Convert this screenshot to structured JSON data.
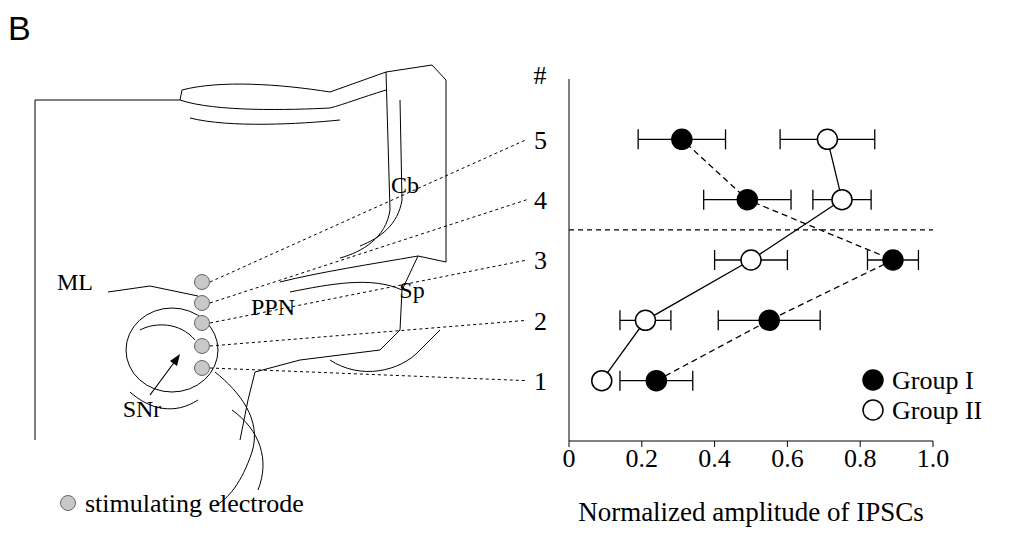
{
  "panel_label": "B",
  "diagram": {
    "region_labels": [
      "ML",
      "PPN",
      "Sp",
      "Cb",
      "SNr"
    ],
    "electrode_legend": "stimulating electrode"
  },
  "chart_data": {
    "type": "scatter",
    "x_label": "Normalized amplitude of IPSCs",
    "y_label": "#",
    "y": [
      1,
      2,
      3,
      4,
      5
    ],
    "xlim": [
      0,
      1
    ],
    "xticks": [
      0,
      0.2,
      0.4,
      0.6,
      0.8,
      {
        "value": 1,
        "label": "1.0"
      }
    ],
    "ylim": [
      0,
      6
    ],
    "yticks": [
      1,
      2,
      3,
      4,
      5
    ],
    "reference_line_y": 3.5,
    "legend": "lower right",
    "series": [
      {
        "name": "Group I",
        "color": "#000000",
        "marker": "filled_circle",
        "line_style": "dashed",
        "values": [
          0.24,
          0.55,
          0.89,
          0.49,
          0.31
        ],
        "errors": [
          0.1,
          0.14,
          0.07,
          0.12,
          0.12
        ]
      },
      {
        "name": "Group II",
        "color": "#000000",
        "marker": "open_circle",
        "line_style": "solid",
        "values": [
          0.09,
          0.21,
          0.5,
          0.75,
          0.71
        ],
        "errors": [
          0,
          0.07,
          0.1,
          0.08,
          0.13
        ]
      }
    ]
  }
}
